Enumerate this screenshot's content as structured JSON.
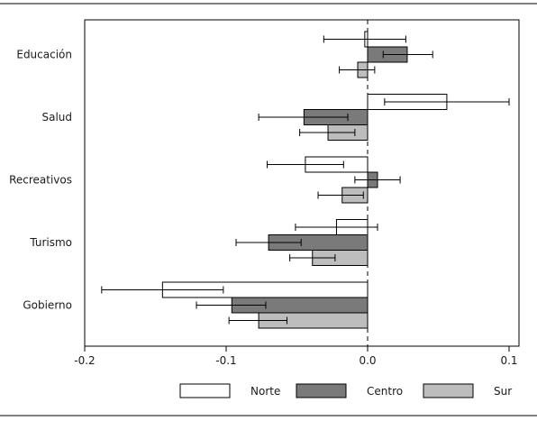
{
  "chart_data": {
    "type": "bar",
    "orientation": "horizontal",
    "title": "",
    "xlabel": "",
    "ylabel": "",
    "xlim": [
      -0.2,
      0.1
    ],
    "xticks": [
      -0.2,
      -0.1,
      0.0,
      0.1
    ],
    "xtick_labels": [
      "-0.2",
      "-0.1",
      "0.0",
      "0.1"
    ],
    "reference_line": {
      "x": 0.0,
      "style": "dashed"
    },
    "grid": false,
    "legend": {
      "position": "bottom-right"
    },
    "categories": [
      "Educación",
      "Salud",
      "Recreativos",
      "Turismo",
      "Gobierno"
    ],
    "series": [
      {
        "name": "Norte",
        "color": "#ffffff",
        "values": [
          -0.002,
          0.056,
          -0.044,
          -0.022,
          -0.145
        ],
        "ci_low": [
          -0.031,
          0.012,
          -0.071,
          -0.051,
          -0.188
        ],
        "ci_high": [
          0.027,
          0.1,
          -0.017,
          0.007,
          -0.102
        ]
      },
      {
        "name": "Centro",
        "color": "#7a7a7a",
        "values": [
          0.028,
          -0.045,
          0.007,
          -0.07,
          -0.096
        ],
        "ci_low": [
          0.011,
          -0.077,
          -0.009,
          -0.093,
          -0.121
        ],
        "ci_high": [
          0.046,
          -0.014,
          0.023,
          -0.047,
          -0.072
        ]
      },
      {
        "name": "Sur",
        "color": "#bdbdbd",
        "values": [
          -0.007,
          -0.028,
          -0.018,
          -0.039,
          -0.077
        ],
        "ci_low": [
          -0.02,
          -0.048,
          -0.035,
          -0.055,
          -0.098
        ],
        "ci_high": [
          0.005,
          -0.009,
          -0.003,
          -0.023,
          -0.057
        ]
      }
    ]
  }
}
